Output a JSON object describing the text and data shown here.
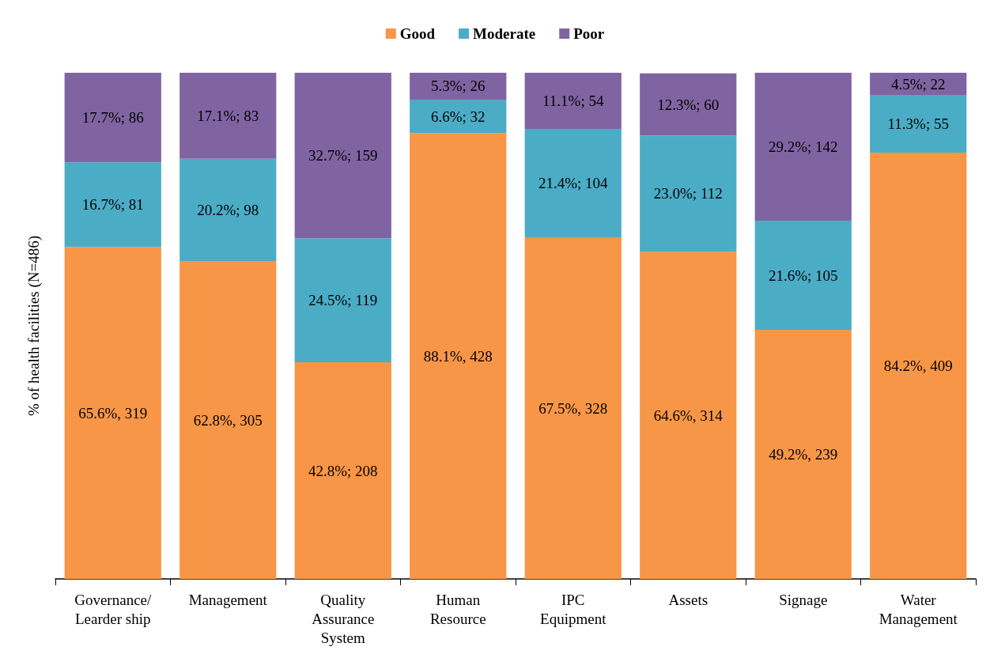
{
  "chart_data": {
    "type": "bar",
    "stacked": true,
    "ylabel": "% of health facilities (N=486)",
    "legend": "top",
    "grid": false,
    "tick_labels": "x",
    "ylim": [
      0,
      100
    ],
    "categories": [
      "Governance/\nLearder ship",
      "Management",
      "Quality\nAssurance\nSystem",
      "Human\nResource",
      "IPC\nEquipment",
      "Assets",
      "Signage",
      "Water\nManagement"
    ],
    "series": [
      {
        "name": "Good",
        "color": "#f79646",
        "values": [
          65.6,
          62.8,
          42.8,
          88.1,
          67.5,
          64.6,
          49.2,
          84.2
        ],
        "value_labels": [
          "65.6%, 319",
          "62.8%, 305",
          "42.8%; 208",
          "88.1%, 428",
          "67.5%, 328",
          "64.6%, 314",
          "49.2%, 239",
          "84.2%, 409"
        ]
      },
      {
        "name": "Moderate",
        "color": "#4bacc6",
        "values": [
          16.7,
          20.2,
          24.5,
          6.6,
          21.4,
          23.0,
          21.6,
          11.3
        ],
        "value_labels": [
          "16.7%; 81",
          "20.2%; 98",
          "24.5%; 119",
          "6.6%; 32",
          "21.4%; 104",
          "23.0%; 112",
          "21.6%; 105",
          "11.3%; 55"
        ]
      },
      {
        "name": "Poor",
        "color": "#8064a2",
        "values": [
          17.7,
          17.1,
          32.7,
          5.3,
          11.1,
          12.3,
          29.2,
          4.5
        ],
        "value_labels": [
          "17.7%; 86",
          "17.1%; 83",
          "32.7%; 159",
          "5.3%; 26",
          "11.1%; 54",
          "12.3%; 60",
          "29.2%; 142",
          "4.5%; 22"
        ]
      }
    ]
  }
}
